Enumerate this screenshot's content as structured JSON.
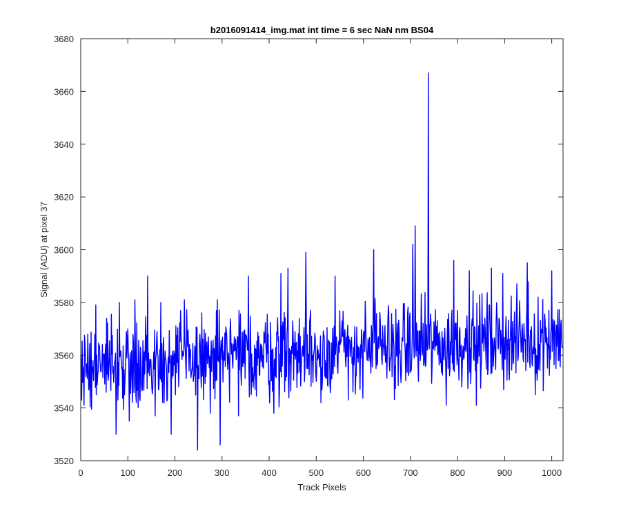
{
  "chart_data": {
    "type": "line",
    "title": "b2016091414_img.mat int time = 6 sec  NaN nm BS04",
    "xlabel": "Track Pixels",
    "ylabel": "Signal (ADU) at pixel 37",
    "xlim": [
      0,
      1024
    ],
    "ylim": [
      3520,
      3680
    ],
    "xticks": [
      0,
      100,
      200,
      300,
      400,
      500,
      600,
      700,
      800,
      900,
      1000
    ],
    "yticks": [
      3520,
      3540,
      3560,
      3580,
      3600,
      3620,
      3640,
      3660,
      3680
    ],
    "grid": false,
    "series": [
      {
        "color": "#0000ff",
        "noise": {
          "count": 1024,
          "base_start": 3556,
          "base_end": 3567,
          "amplitude": 8
        },
        "spikes": [
          {
            "x": 7,
            "y": 3541
          },
          {
            "x": 15,
            "y": 3568
          },
          {
            "x": 32,
            "y": 3579
          },
          {
            "x": 55,
            "y": 3574
          },
          {
            "x": 75,
            "y": 3530
          },
          {
            "x": 82,
            "y": 3580
          },
          {
            "x": 103,
            "y": 3535
          },
          {
            "x": 115,
            "y": 3581
          },
          {
            "x": 142,
            "y": 3590
          },
          {
            "x": 158,
            "y": 3537
          },
          {
            "x": 170,
            "y": 3580
          },
          {
            "x": 192,
            "y": 3530
          },
          {
            "x": 220,
            "y": 3581
          },
          {
            "x": 248,
            "y": 3524
          },
          {
            "x": 275,
            "y": 3538
          },
          {
            "x": 290,
            "y": 3581
          },
          {
            "x": 296,
            "y": 3526
          },
          {
            "x": 335,
            "y": 3537
          },
          {
            "x": 356,
            "y": 3590
          },
          {
            "x": 410,
            "y": 3538
          },
          {
            "x": 425,
            "y": 3591
          },
          {
            "x": 440,
            "y": 3593
          },
          {
            "x": 478,
            "y": 3599
          },
          {
            "x": 510,
            "y": 3542
          },
          {
            "x": 540,
            "y": 3590
          },
          {
            "x": 568,
            "y": 3543
          },
          {
            "x": 622,
            "y": 3600
          },
          {
            "x": 705,
            "y": 3602
          },
          {
            "x": 710,
            "y": 3609
          },
          {
            "x": 738,
            "y": 3667
          },
          {
            "x": 776,
            "y": 3541
          },
          {
            "x": 792,
            "y": 3596
          },
          {
            "x": 825,
            "y": 3592
          },
          {
            "x": 840,
            "y": 3541
          },
          {
            "x": 872,
            "y": 3593
          },
          {
            "x": 896,
            "y": 3591
          },
          {
            "x": 948,
            "y": 3595
          },
          {
            "x": 965,
            "y": 3545
          },
          {
            "x": 1000,
            "y": 3592
          }
        ]
      }
    ]
  }
}
